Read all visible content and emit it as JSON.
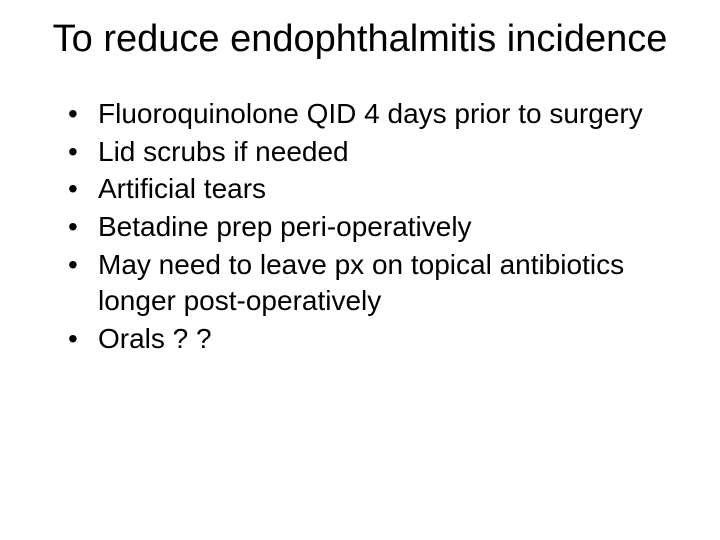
{
  "slide": {
    "title": "To reduce endophthalmitis incidence",
    "bullets": [
      "Fluoroquinolone QID 4 days prior to surgery",
      "Lid scrubs if needed",
      "Artificial tears",
      "Betadine prep peri-operatively",
      "May need to leave px on topical antibiotics longer post-operatively",
      "Orals ? ?"
    ],
    "title_fontsize": 38,
    "bullet_fontsize": 28,
    "text_color": "#000000",
    "background_color": "#ffffff",
    "font_family": "Arial"
  }
}
